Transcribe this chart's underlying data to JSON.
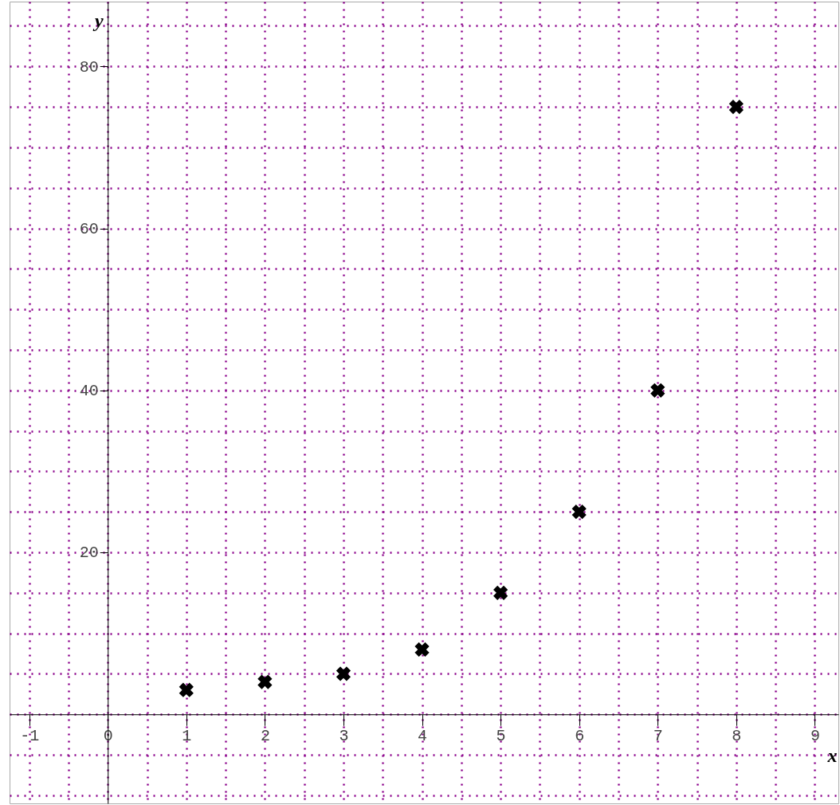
{
  "chart_data": {
    "type": "scatter",
    "xlabel": "x",
    "ylabel": "y",
    "x": [
      1,
      2,
      3,
      4,
      5,
      6,
      7,
      8
    ],
    "series": [
      {
        "color": "#000000",
        "values": [
          3,
          4,
          5,
          8,
          15,
          25,
          40,
          75
        ]
      }
    ],
    "xlim": [
      -1.25,
      9.3
    ],
    "ylim": [
      -11,
      88
    ],
    "xticks": [
      -1,
      0,
      1,
      2,
      3,
      4,
      5,
      6,
      7,
      8,
      9
    ],
    "yticks": [
      20,
      40,
      60,
      80
    ],
    "grid": true,
    "marker": "cross"
  }
}
